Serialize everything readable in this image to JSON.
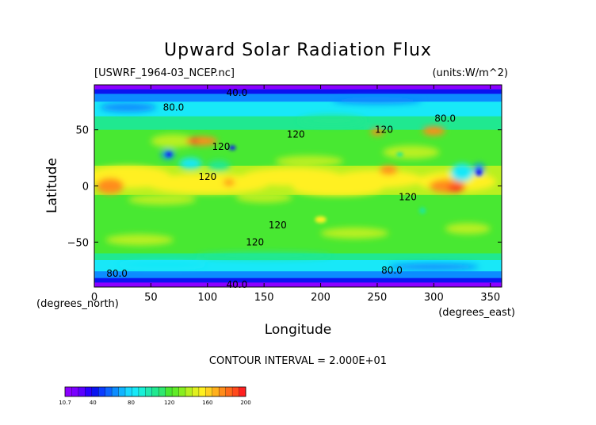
{
  "chart_data": {
    "type": "heatmap",
    "title": "Upward Solar Radiation Flux",
    "file_label": "[USWRF_1964-03_NCEP.nc]",
    "units_label": "(units:W/m^2)",
    "xlabel": "Longitude",
    "ylabel": "Latitude",
    "x_unit_label": "(degrees_east)",
    "y_unit_label": "(degrees_north)",
    "xlim": [
      0,
      360
    ],
    "ylim": [
      -90,
      90
    ],
    "x_ticks": [
      0,
      50,
      100,
      150,
      200,
      250,
      300,
      350
    ],
    "y_ticks": [
      -50,
      0,
      50
    ],
    "contour_interval_text": "CONTOUR INTERVAL = 2.000E+01",
    "contour_labels": [
      {
        "text": "40.0",
        "lon": 126,
        "lat": 83
      },
      {
        "text": "80.0",
        "lon": 70,
        "lat": 70
      },
      {
        "text": "80.0",
        "lon": 310,
        "lat": 60
      },
      {
        "text": "120",
        "lon": 256,
        "lat": 50
      },
      {
        "text": "120",
        "lon": 178,
        "lat": 46
      },
      {
        "text": "120",
        "lon": 112,
        "lat": 35
      },
      {
        "text": "120",
        "lon": 100,
        "lat": 8
      },
      {
        "text": "120",
        "lon": 277,
        "lat": -10
      },
      {
        "text": "120",
        "lon": 162,
        "lat": -35
      },
      {
        "text": "120",
        "lon": 142,
        "lat": -50
      },
      {
        "text": "80.0",
        "lon": 20,
        "lat": -78
      },
      {
        "text": "80.0",
        "lon": 263,
        "lat": -75
      },
      {
        "text": "40.0",
        "lon": 126,
        "lat": -88
      }
    ],
    "colorbar": {
      "min": 10.7,
      "max": 200,
      "tick_labels": [
        "10.7",
        "40",
        "80",
        "120",
        "160",
        "200"
      ],
      "tick_values": [
        10.7,
        40,
        80,
        120,
        160,
        200
      ]
    },
    "colors": {
      "purple": "#8b00ff",
      "blue": "#0a14f0",
      "light_blue": "#0c8cff",
      "cyan": "#18e8f8",
      "teal_green": "#20e890",
      "green": "#48e832",
      "yellow_green": "#b8f020",
      "yellow": "#fff020",
      "orange": "#ff8c1a",
      "red": "#ff2020"
    }
  }
}
